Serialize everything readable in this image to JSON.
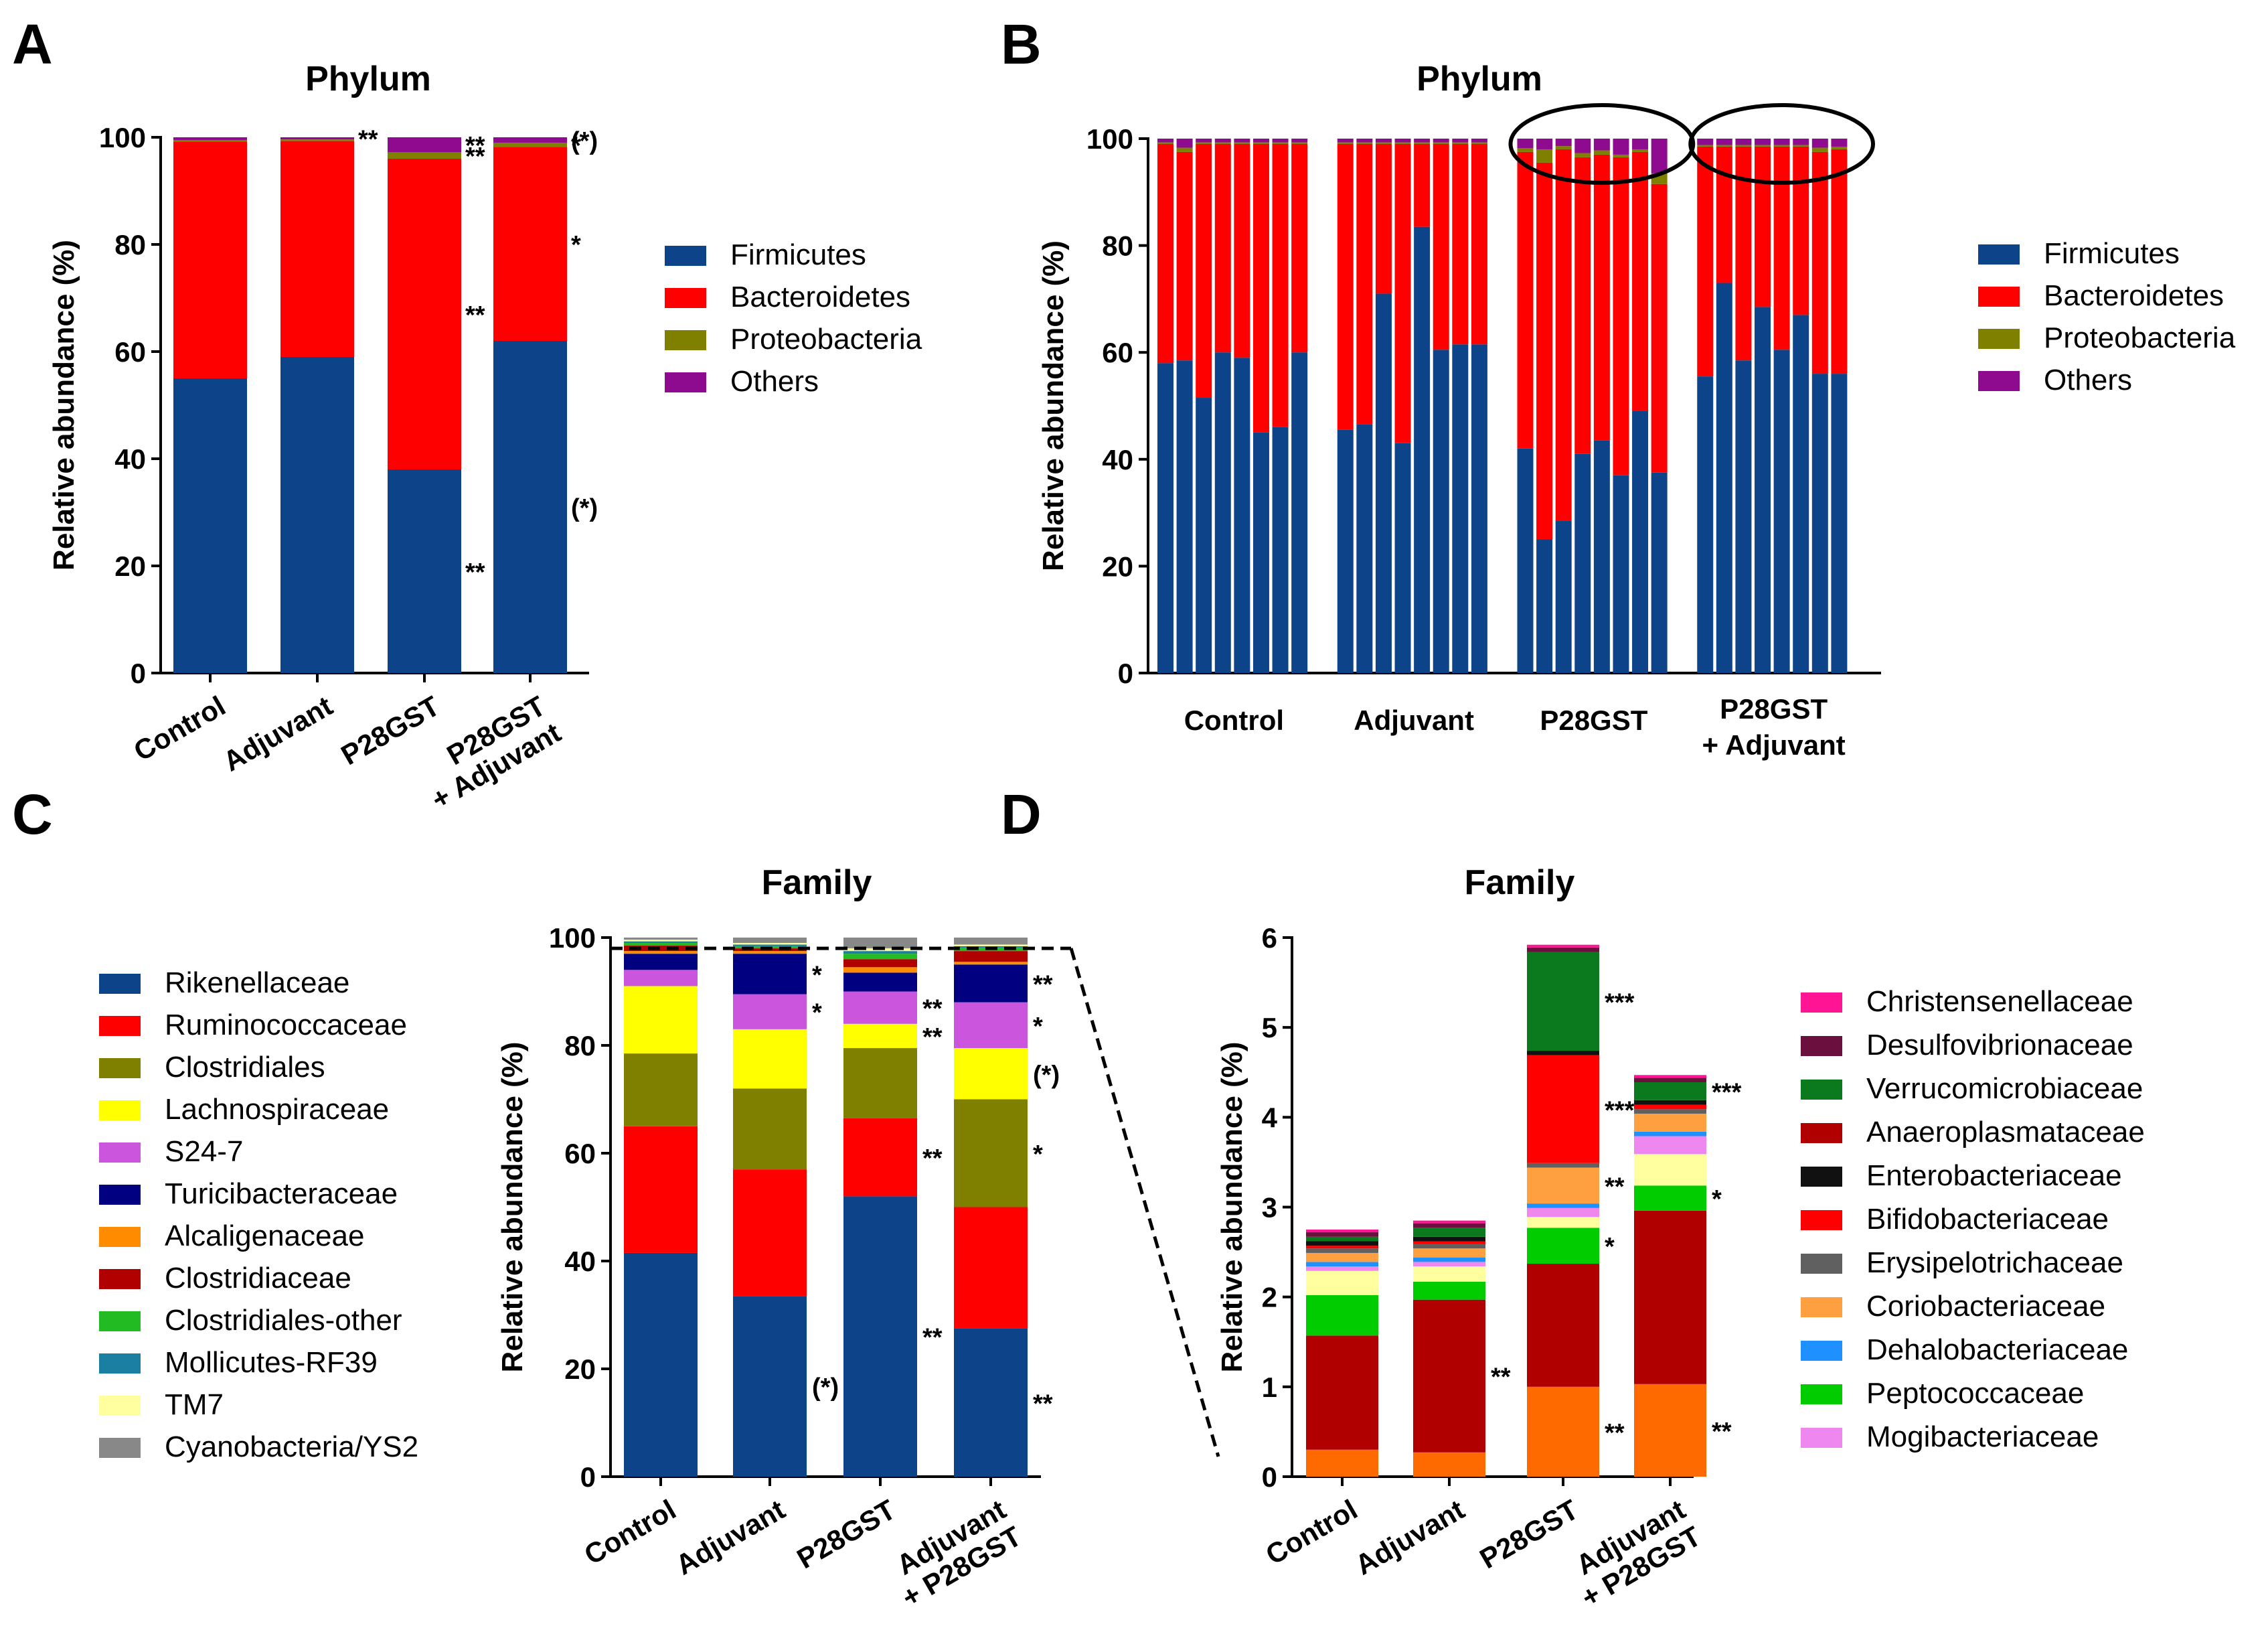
{
  "panels": [
    {
      "letter": "A",
      "chart_data": {
        "type": "bar",
        "stacked": true,
        "title": "Phylum",
        "ylabel": "Relative abundance (%)",
        "ylim": [
          0,
          100
        ],
        "yticks": [
          "0",
          "20",
          "40",
          "60",
          "80",
          "100"
        ],
        "categories": [
          "Control",
          "Adjuvant",
          "P28GST",
          "P28GST\n+ Adjuvant"
        ],
        "series": [
          {
            "name": "Firmicutes",
            "color": "#0d4489",
            "values": [
              55,
              59,
              38,
              62
            ]
          },
          {
            "name": "Bacteroidetes",
            "color": "#ff0000",
            "values": [
              44.2,
              40.3,
              58,
              36.2
            ]
          },
          {
            "name": "Proteobacteria",
            "color": "#808000",
            "values": [
              0.3,
              0.3,
              1.2,
              0.8
            ]
          },
          {
            "name": "Others",
            "color": "#8e0a8e",
            "values": [
              0.5,
              0.4,
              2.8,
              1
            ]
          }
        ],
        "annotations": [
          {
            "category": 1,
            "series": "Others",
            "text": "**",
            "side": "right"
          },
          {
            "category": 2,
            "series": "Firmicutes",
            "text": "**",
            "side": "right"
          },
          {
            "category": 2,
            "series": "Bacteroidetes",
            "text": "**",
            "side": "right"
          },
          {
            "category": 2,
            "series": "Proteobacteria",
            "text": "**",
            "side": "right"
          },
          {
            "category": 2,
            "series": "Others",
            "text": "**",
            "side": "right"
          },
          {
            "category": 3,
            "series": "Firmicutes",
            "text": "(*)",
            "side": "right"
          },
          {
            "category": 3,
            "series": "Bacteroidetes",
            "text": "*",
            "side": "right"
          },
          {
            "category": 3,
            "series": "Proteobacteria",
            "text": "*",
            "side": "right"
          },
          {
            "category": 3,
            "series": "Others",
            "text": "(*)",
            "side": "right"
          }
        ]
      }
    },
    {
      "letter": "B",
      "chart_data": {
        "type": "bar",
        "stacked": true,
        "title": "Phylum",
        "ylabel": "Relative abundance (%)",
        "ylim": [
          0,
          100
        ],
        "yticks": [
          "0",
          "20",
          "40",
          "60",
          "80",
          "100"
        ],
        "group_labels": [
          "Control",
          "Adjuvant",
          "P28GST",
          "P28GST\n+ Adjuvant"
        ],
        "bars_per_group": 8,
        "circled_groups": [
          2,
          3
        ],
        "firmicutes": [
          58,
          58.5,
          51.5,
          60,
          59,
          45,
          46,
          60,
          45.5,
          46.5,
          71,
          43,
          83.5,
          60.5,
          61.5,
          61.5,
          42,
          25,
          28.5,
          41,
          43.5,
          37,
          49,
          37.5,
          55.5,
          73,
          58.5,
          68.5,
          60.5,
          67,
          56,
          56
        ],
        "bacteroidetes_top": [
          99,
          97.5,
          99,
          99,
          99,
          99,
          99,
          99,
          99,
          99,
          99,
          99,
          99,
          99,
          99,
          99,
          97.5,
          95.5,
          98,
          96.5,
          97,
          96.5,
          97.5,
          91.5,
          98.5,
          98.5,
          98.5,
          98.5,
          98.5,
          98.5,
          97.5,
          98
        ],
        "proteobacteria_top": [
          99.3,
          98.3,
          99.3,
          99.3,
          99.3,
          99.3,
          99.3,
          99.3,
          99.3,
          99.3,
          99.3,
          99.3,
          99.3,
          99.3,
          99.3,
          99.3,
          98.2,
          98,
          98.6,
          97.3,
          97.8,
          97,
          98,
          93.5,
          98.8,
          98.8,
          98.8,
          98.8,
          98.8,
          98.8,
          98.3,
          98.5
        ],
        "series": [
          {
            "name": "Firmicutes",
            "color": "#0d4489"
          },
          {
            "name": "Bacteroidetes",
            "color": "#ff0000"
          },
          {
            "name": "Proteobacteria",
            "color": "#808000"
          },
          {
            "name": "Others",
            "color": "#8e0a8e"
          }
        ]
      }
    },
    {
      "letter": "C",
      "chart_data": {
        "type": "bar",
        "stacked": true,
        "title": "Family",
        "ylabel": "Relative abundance (%)",
        "ylim": [
          0,
          100
        ],
        "yticks": [
          "0",
          "20",
          "40",
          "60",
          "80",
          "100"
        ],
        "categories": [
          "Control",
          "Adjuvant",
          "P28GST",
          "Adjuvant\n+ P28GST"
        ],
        "series": [
          {
            "name": "Rikenellaceae",
            "color": "#0d4489",
            "values": [
              41.5,
              33.5,
              52,
              27.5
            ]
          },
          {
            "name": "Ruminococcaceae",
            "color": "#ff0000",
            "values": [
              23.5,
              23.5,
              14.5,
              22.5
            ]
          },
          {
            "name": "Clostridiales",
            "color": "#808000",
            "values": [
              13.5,
              15,
              13,
              20
            ]
          },
          {
            "name": "Lachnospiraceae",
            "color": "#ffff00",
            "values": [
              12.5,
              11,
              4.5,
              9.5
            ]
          },
          {
            "name": "S24-7",
            "color": "#cc55dd",
            "values": [
              3,
              6.5,
              6,
              8.5
            ]
          },
          {
            "name": "Turicibacteraceae",
            "color": "#000080",
            "values": [
              3,
              7.5,
              3.5,
              7
            ]
          },
          {
            "name": "Alcaligenaceae",
            "color": "#ff8c00",
            "values": [
              0.5,
              0.5,
              1,
              0.5
            ]
          },
          {
            "name": "Clostridiaceae",
            "color": "#b00000",
            "values": [
              1,
              0.5,
              1.5,
              2
            ]
          },
          {
            "name": "Clostridiales-other",
            "color": "#22bb22",
            "values": [
              0.5,
              0.4,
              1,
              0.6
            ]
          },
          {
            "name": "Mollicutes-RF39",
            "color": "#1a7fa0",
            "values": [
              0.3,
              0.3,
              0.5,
              0.3
            ]
          },
          {
            "name": "TM7",
            "color": "#ffffa0",
            "values": [
              0.3,
              0.3,
              0.5,
              0.3
            ]
          },
          {
            "name": "Cyanobacteria/YS2",
            "color": "#888888",
            "values": [
              0.4,
              1,
              2,
              1.3
            ]
          }
        ],
        "reference_line_y": 98,
        "annotations": [
          {
            "category": 1,
            "series": "Rikenellaceae",
            "text": "(*)",
            "side": "right"
          },
          {
            "category": 1,
            "series": "S24-7",
            "text": "*",
            "side": "right"
          },
          {
            "category": 1,
            "series": "Turicibacteraceae",
            "text": "*",
            "side": "right"
          },
          {
            "category": 2,
            "series": "Rikenellaceae",
            "text": "**",
            "side": "right"
          },
          {
            "category": 2,
            "series": "Ruminococcaceae",
            "text": "**",
            "side": "right"
          },
          {
            "category": 2,
            "series": "Lachnospiraceae",
            "text": "**",
            "side": "right"
          },
          {
            "category": 2,
            "series": "S24-7",
            "text": "**",
            "side": "right"
          },
          {
            "category": 3,
            "series": "Rikenellaceae",
            "text": "**",
            "side": "right"
          },
          {
            "category": 3,
            "series": "Clostridiales",
            "text": "*",
            "side": "right"
          },
          {
            "category": 3,
            "series": "Lachnospiraceae",
            "text": "(*)",
            "side": "right"
          },
          {
            "category": 3,
            "series": "S24-7",
            "text": "*",
            "side": "right"
          },
          {
            "category": 3,
            "series": "Turicibacteraceae",
            "text": "**",
            "side": "right"
          }
        ]
      }
    },
    {
      "letter": "D",
      "chart_data": {
        "type": "bar",
        "stacked": true,
        "title": "Family",
        "ylabel": "Relative abundance (%)",
        "ylim": [
          0,
          6
        ],
        "yticks": [
          "0",
          "1",
          "2",
          "3",
          "4",
          "5",
          "6"
        ],
        "categories": [
          "Control",
          "Adjuvant",
          "P28GST",
          "Adjuvant\n+ P28GST"
        ],
        "series": [
          {
            "name": "Christensenellaceae",
            "color": "#ff1493",
            "values": [
              0.03,
              0.03,
              0.03,
              0.03
            ]
          },
          {
            "name": "Desulfovibrionaceae",
            "color": "#6b0f3f",
            "values": [
              0.05,
              0.05,
              0.05,
              0.05
            ]
          },
          {
            "name": "Verrucomicrobiaceae",
            "color": "#0b7a1f",
            "values": [
              0.05,
              0.1,
              1.1,
              0.2
            ]
          },
          {
            "name": "Anaeroplasmataceae",
            "color": "#b00000",
            "values": [
              1.27,
              1.7,
              1.37,
              1.93
            ]
          },
          {
            "name": "Enterobacteriaceae",
            "color": "#111111",
            "values": [
              0.05,
              0.05,
              0.05,
              0.05
            ]
          },
          {
            "name": "Bifidobacteriaceae",
            "color": "#ff0000",
            "values": [
              0.03,
              0.03,
              1.2,
              0.05
            ]
          },
          {
            "name": "Erysipelotrichaceae",
            "color": "#606060",
            "values": [
              0.05,
              0.05,
              0.05,
              0.05
            ]
          },
          {
            "name": "Coriobacteriaceae",
            "color": "#ffa040",
            "values": [
              0.1,
              0.1,
              0.4,
              0.2
            ]
          },
          {
            "name": "Dehalobacteriaceae",
            "color": "#1e90ff",
            "values": [
              0.05,
              0.05,
              0.05,
              0.05
            ]
          },
          {
            "name": "Peptococcaceae",
            "color": "#00cc00",
            "values": [
              0.45,
              0.2,
              0.4,
              0.28
            ]
          },
          {
            "name": "Mogibacteriaceae",
            "color": "#ee88ee",
            "values": [
              0.05,
              0.05,
              0.1,
              0.2
            ]
          }
        ],
        "extra_segments": {
          "note": "bottom Alcaligenaceae-orange and TM7-yellow segments shared with the family legend",
          "orange_bottom": {
            "color": "#ff6a00",
            "values": [
              0.3,
              0.27,
              1,
              1.03
            ]
          },
          "yellow": {
            "color": "#ffffa0",
            "values": [
              0.27,
              0.17,
              0.12,
              0.35
            ]
          }
        },
        "annotations": [
          {
            "category": 1,
            "series": "Anaeroplasmataceae",
            "text": "**",
            "side": "right"
          },
          {
            "category": 2,
            "series": "orange_bottom",
            "text": "**",
            "side": "right"
          },
          {
            "category": 2,
            "series": "Peptococcaceae",
            "text": "*",
            "side": "right"
          },
          {
            "category": 2,
            "series": "Coriobacteriaceae",
            "text": "**",
            "side": "right"
          },
          {
            "category": 2,
            "series": "Bifidobacteriaceae",
            "text": "***",
            "side": "right"
          },
          {
            "category": 2,
            "series": "Verrucomicrobiaceae",
            "text": "***",
            "side": "right"
          },
          {
            "category": 3,
            "series": "orange_bottom",
            "text": "**",
            "side": "right"
          },
          {
            "category": 3,
            "series": "Peptococcaceae",
            "text": "*",
            "side": "right"
          },
          {
            "category": 3,
            "series": "Verrucomicrobiaceae",
            "text": "***",
            "side": "right"
          }
        ]
      }
    }
  ]
}
